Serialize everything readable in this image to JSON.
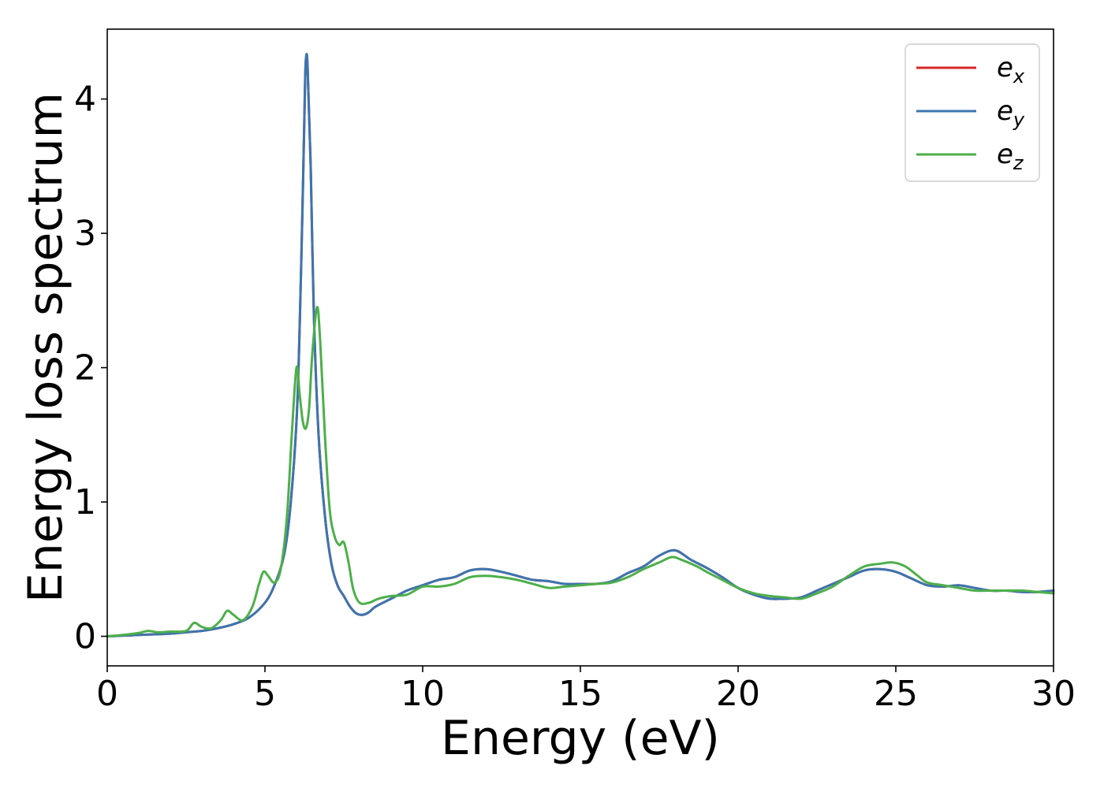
{
  "chart_data": {
    "type": "line",
    "title": "",
    "xlabel": "Energy (eV)",
    "ylabel": "Energy loss spectrum",
    "xlim": [
      0,
      30
    ],
    "ylim": [
      -0.22,
      4.52
    ],
    "grid": false,
    "legend_position": "top-right",
    "x_ticks": [
      0,
      5,
      10,
      15,
      20,
      25,
      30
    ],
    "x_tick_labels": [
      "0",
      "5",
      "10",
      "15",
      "20",
      "25",
      "30"
    ],
    "y_ticks": [
      0,
      1,
      2,
      3,
      4
    ],
    "y_tick_labels": [
      "0",
      "1",
      "2",
      "3",
      "4"
    ],
    "series": [
      {
        "name": "e_x",
        "legend_base": "e",
        "legend_sub": "x",
        "color": "#d62728",
        "points": [
          [
            0,
            0
          ],
          [
            0.5,
            0.005
          ],
          [
            1,
            0.01
          ],
          [
            1.5,
            0.015
          ],
          [
            2,
            0.02
          ],
          [
            2.5,
            0.03
          ],
          [
            3,
            0.04
          ],
          [
            3.5,
            0.06
          ],
          [
            4,
            0.09
          ],
          [
            4.5,
            0.14
          ],
          [
            5,
            0.25
          ],
          [
            5.3,
            0.38
          ],
          [
            5.6,
            0.6
          ],
          [
            5.8,
            0.95
          ],
          [
            6.0,
            1.6
          ],
          [
            6.1,
            2.3
          ],
          [
            6.2,
            3.3
          ],
          [
            6.27,
            4.1
          ],
          [
            6.3,
            4.3
          ],
          [
            6.35,
            4.25
          ],
          [
            6.45,
            3.5
          ],
          [
            6.55,
            2.4
          ],
          [
            6.7,
            1.5
          ],
          [
            6.9,
            0.9
          ],
          [
            7.1,
            0.55
          ],
          [
            7.3,
            0.38
          ],
          [
            7.5,
            0.3
          ],
          [
            7.7,
            0.22
          ],
          [
            7.9,
            0.17
          ],
          [
            8.1,
            0.16
          ],
          [
            8.3,
            0.18
          ],
          [
            8.5,
            0.22
          ],
          [
            9,
            0.28
          ],
          [
            9.5,
            0.34
          ],
          [
            10,
            0.38
          ],
          [
            10.5,
            0.42
          ],
          [
            11,
            0.44
          ],
          [
            11.5,
            0.49
          ],
          [
            12,
            0.5
          ],
          [
            12.5,
            0.48
          ],
          [
            13,
            0.45
          ],
          [
            13.5,
            0.42
          ],
          [
            14,
            0.41
          ],
          [
            14.5,
            0.39
          ],
          [
            15,
            0.39
          ],
          [
            15.5,
            0.39
          ],
          [
            16,
            0.41
          ],
          [
            16.5,
            0.47
          ],
          [
            17,
            0.52
          ],
          [
            17.5,
            0.6
          ],
          [
            18,
            0.64
          ],
          [
            18.5,
            0.57
          ],
          [
            19,
            0.51
          ],
          [
            19.5,
            0.44
          ],
          [
            20,
            0.36
          ],
          [
            20.5,
            0.31
          ],
          [
            21,
            0.28
          ],
          [
            21.5,
            0.28
          ],
          [
            22,
            0.29
          ],
          [
            22.5,
            0.34
          ],
          [
            23,
            0.39
          ],
          [
            23.5,
            0.44
          ],
          [
            24,
            0.49
          ],
          [
            24.5,
            0.5
          ],
          [
            25,
            0.48
          ],
          [
            25.5,
            0.43
          ],
          [
            26,
            0.38
          ],
          [
            26.5,
            0.37
          ],
          [
            27,
            0.38
          ],
          [
            27.5,
            0.36
          ],
          [
            28,
            0.34
          ],
          [
            28.5,
            0.34
          ],
          [
            29,
            0.33
          ],
          [
            29.5,
            0.33
          ],
          [
            30,
            0.34
          ]
        ]
      },
      {
        "name": "e_y",
        "legend_base": "e",
        "legend_sub": "y",
        "color": "#3b75af",
        "points": [
          [
            0,
            0
          ],
          [
            0.5,
            0.005
          ],
          [
            1,
            0.01
          ],
          [
            1.5,
            0.015
          ],
          [
            2,
            0.02
          ],
          [
            2.5,
            0.03
          ],
          [
            3,
            0.04
          ],
          [
            3.5,
            0.06
          ],
          [
            4,
            0.09
          ],
          [
            4.5,
            0.14
          ],
          [
            5,
            0.25
          ],
          [
            5.3,
            0.38
          ],
          [
            5.6,
            0.6
          ],
          [
            5.8,
            0.95
          ],
          [
            6.0,
            1.6
          ],
          [
            6.1,
            2.3
          ],
          [
            6.2,
            3.3
          ],
          [
            6.27,
            4.1
          ],
          [
            6.3,
            4.3
          ],
          [
            6.35,
            4.25
          ],
          [
            6.45,
            3.5
          ],
          [
            6.55,
            2.4
          ],
          [
            6.7,
            1.5
          ],
          [
            6.9,
            0.9
          ],
          [
            7.1,
            0.55
          ],
          [
            7.3,
            0.38
          ],
          [
            7.5,
            0.3
          ],
          [
            7.7,
            0.22
          ],
          [
            7.9,
            0.17
          ],
          [
            8.1,
            0.16
          ],
          [
            8.3,
            0.18
          ],
          [
            8.5,
            0.22
          ],
          [
            9,
            0.28
          ],
          [
            9.5,
            0.34
          ],
          [
            10,
            0.38
          ],
          [
            10.5,
            0.42
          ],
          [
            11,
            0.44
          ],
          [
            11.5,
            0.49
          ],
          [
            12,
            0.5
          ],
          [
            12.5,
            0.48
          ],
          [
            13,
            0.45
          ],
          [
            13.5,
            0.42
          ],
          [
            14,
            0.41
          ],
          [
            14.5,
            0.39
          ],
          [
            15,
            0.39
          ],
          [
            15.5,
            0.39
          ],
          [
            16,
            0.41
          ],
          [
            16.5,
            0.47
          ],
          [
            17,
            0.52
          ],
          [
            17.5,
            0.6
          ],
          [
            18,
            0.64
          ],
          [
            18.5,
            0.57
          ],
          [
            19,
            0.51
          ],
          [
            19.5,
            0.44
          ],
          [
            20,
            0.36
          ],
          [
            20.5,
            0.31
          ],
          [
            21,
            0.28
          ],
          [
            21.5,
            0.28
          ],
          [
            22,
            0.29
          ],
          [
            22.5,
            0.34
          ],
          [
            23,
            0.39
          ],
          [
            23.5,
            0.44
          ],
          [
            24,
            0.49
          ],
          [
            24.5,
            0.5
          ],
          [
            25,
            0.48
          ],
          [
            25.5,
            0.43
          ],
          [
            26,
            0.38
          ],
          [
            26.5,
            0.37
          ],
          [
            27,
            0.38
          ],
          [
            27.5,
            0.36
          ],
          [
            28,
            0.34
          ],
          [
            28.5,
            0.34
          ],
          [
            29,
            0.33
          ],
          [
            29.5,
            0.33
          ],
          [
            30,
            0.34
          ]
        ]
      },
      {
        "name": "e_z",
        "legend_base": "e",
        "legend_sub": "z",
        "color": "#4daf4a",
        "points": [
          [
            0,
            0
          ],
          [
            0.5,
            0.01
          ],
          [
            1,
            0.025
          ],
          [
            1.3,
            0.04
          ],
          [
            1.6,
            0.03
          ],
          [
            2,
            0.035
          ],
          [
            2.5,
            0.04
          ],
          [
            2.75,
            0.1
          ],
          [
            3,
            0.07
          ],
          [
            3.3,
            0.06
          ],
          [
            3.6,
            0.12
          ],
          [
            3.8,
            0.19
          ],
          [
            4,
            0.16
          ],
          [
            4.3,
            0.12
          ],
          [
            4.6,
            0.22
          ],
          [
            4.8,
            0.38
          ],
          [
            4.95,
            0.48
          ],
          [
            5.1,
            0.45
          ],
          [
            5.3,
            0.4
          ],
          [
            5.5,
            0.5
          ],
          [
            5.7,
            0.9
          ],
          [
            5.85,
            1.5
          ],
          [
            6.0,
            2.0
          ],
          [
            6.1,
            1.8
          ],
          [
            6.2,
            1.6
          ],
          [
            6.3,
            1.55
          ],
          [
            6.4,
            1.7
          ],
          [
            6.5,
            2.1
          ],
          [
            6.65,
            2.45
          ],
          [
            6.75,
            2.2
          ],
          [
            6.9,
            1.5
          ],
          [
            7.05,
            0.95
          ],
          [
            7.2,
            0.75
          ],
          [
            7.35,
            0.68
          ],
          [
            7.5,
            0.7
          ],
          [
            7.65,
            0.55
          ],
          [
            7.8,
            0.35
          ],
          [
            8,
            0.25
          ],
          [
            8.3,
            0.25
          ],
          [
            8.6,
            0.28
          ],
          [
            9,
            0.3
          ],
          [
            9.5,
            0.31
          ],
          [
            10,
            0.37
          ],
          [
            10.5,
            0.37
          ],
          [
            11,
            0.39
          ],
          [
            11.5,
            0.44
          ],
          [
            12,
            0.45
          ],
          [
            12.5,
            0.44
          ],
          [
            13,
            0.42
          ],
          [
            13.5,
            0.39
          ],
          [
            14,
            0.36
          ],
          [
            14.5,
            0.37
          ],
          [
            15,
            0.38
          ],
          [
            15.5,
            0.39
          ],
          [
            16,
            0.4
          ],
          [
            16.5,
            0.44
          ],
          [
            17,
            0.5
          ],
          [
            17.5,
            0.55
          ],
          [
            17.9,
            0.59
          ],
          [
            18.2,
            0.57
          ],
          [
            18.7,
            0.52
          ],
          [
            19,
            0.48
          ],
          [
            19.5,
            0.42
          ],
          [
            20,
            0.36
          ],
          [
            20.5,
            0.32
          ],
          [
            21,
            0.3
          ],
          [
            21.5,
            0.29
          ],
          [
            22,
            0.28
          ],
          [
            22.5,
            0.32
          ],
          [
            23,
            0.37
          ],
          [
            23.5,
            0.45
          ],
          [
            24,
            0.52
          ],
          [
            24.5,
            0.54
          ],
          [
            24.9,
            0.55
          ],
          [
            25.3,
            0.52
          ],
          [
            25.7,
            0.45
          ],
          [
            26,
            0.4
          ],
          [
            26.5,
            0.38
          ],
          [
            27,
            0.36
          ],
          [
            27.5,
            0.34
          ],
          [
            28,
            0.34
          ],
          [
            28.5,
            0.34
          ],
          [
            29,
            0.34
          ],
          [
            29.5,
            0.33
          ],
          [
            30,
            0.32
          ]
        ]
      }
    ]
  }
}
